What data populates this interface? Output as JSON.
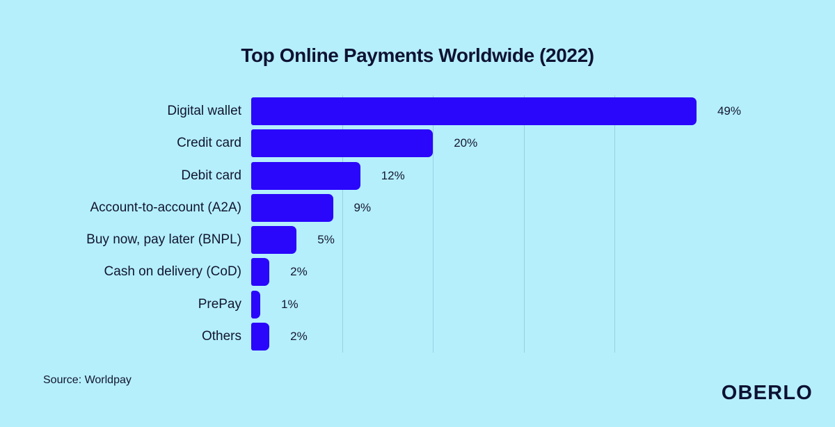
{
  "page": {
    "background_color": "#b5effc",
    "title": "Top Online Payments Worldwide (2022)",
    "source_note": "Source: Worldpay",
    "brand": "OBERLO",
    "text_color": "#0e1233"
  },
  "chart_data": {
    "type": "bar",
    "orientation": "horizontal",
    "title": "Top Online Payments Worldwide (2022)",
    "categories": [
      "Digital wallet",
      "Credit card",
      "Debit card",
      "Account-to-account (A2A)",
      "Buy now, pay later (BNPL)",
      "Cash on delivery (CoD)",
      "PrePay",
      "Others"
    ],
    "values": [
      49,
      20,
      12,
      9,
      5,
      2,
      1,
      2
    ],
    "value_labels": [
      "49%",
      "20%",
      "12%",
      "9%",
      "5%",
      "2%",
      "1%",
      "2%"
    ],
    "unit": "%",
    "xlim": [
      0,
      62
    ],
    "gridlines_percent": [
      10,
      20,
      30,
      40
    ],
    "grid_on": true,
    "legend": "none",
    "bar_color": "#2a06fb",
    "grid_color": "rgba(15, 60, 90, 0.18)",
    "source": "Worldpay"
  }
}
